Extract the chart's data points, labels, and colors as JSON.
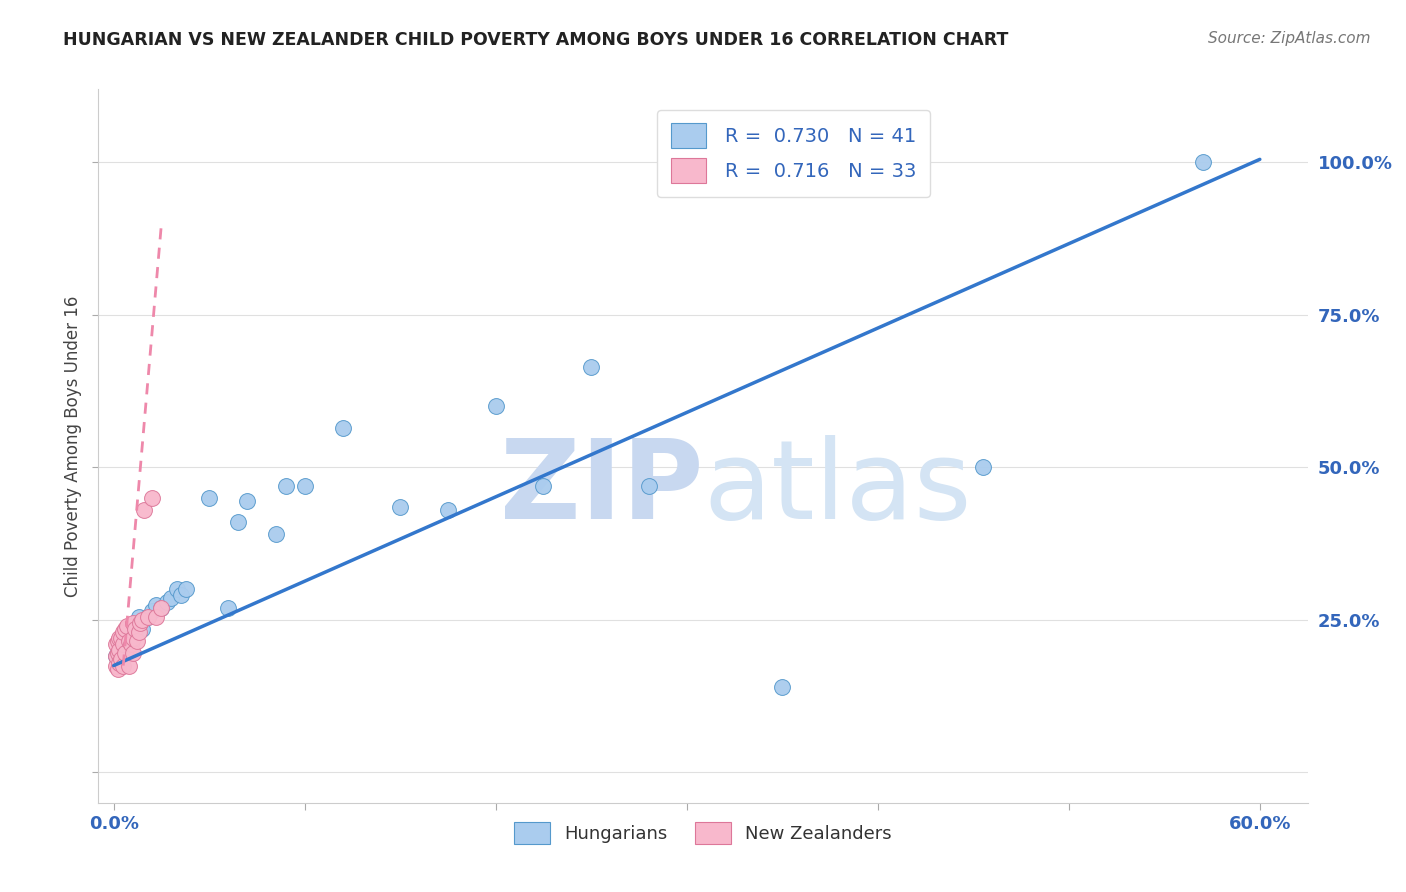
{
  "title": "HUNGARIAN VS NEW ZEALANDER CHILD POVERTY AMONG BOYS UNDER 16 CORRELATION CHART",
  "source": "Source: ZipAtlas.com",
  "ylabel": "Child Poverty Among Boys Under 16",
  "blue_r": 0.73,
  "blue_n": 41,
  "pink_r": 0.716,
  "pink_n": 33,
  "blue_color": "#aaccee",
  "blue_edge_color": "#5599cc",
  "pink_color": "#f8b8cc",
  "pink_edge_color": "#dd7799",
  "blue_line_color": "#3377cc",
  "pink_line_color": "#ee88aa",
  "watermark_color": "#c8d8f0",
  "grid_color": "#e0e0e0",
  "axis_label_color": "#3366bb",
  "title_color": "#222222",
  "source_color": "#777777",
  "blue_x": [
    0.001,
    0.002,
    0.003,
    0.003,
    0.004,
    0.005,
    0.005,
    0.006,
    0.007,
    0.008,
    0.009,
    0.01,
    0.012,
    0.013,
    0.015,
    0.018,
    0.02,
    0.022,
    0.025,
    0.028,
    0.03,
    0.033,
    0.035,
    0.038,
    0.05,
    0.06,
    0.065,
    0.07,
    0.085,
    0.09,
    0.1,
    0.12,
    0.15,
    0.175,
    0.2,
    0.225,
    0.25,
    0.28,
    0.35,
    0.455,
    0.57
  ],
  "blue_y": [
    0.19,
    0.195,
    0.185,
    0.21,
    0.195,
    0.205,
    0.185,
    0.2,
    0.22,
    0.215,
    0.2,
    0.225,
    0.245,
    0.255,
    0.235,
    0.255,
    0.265,
    0.275,
    0.27,
    0.28,
    0.285,
    0.3,
    0.29,
    0.3,
    0.45,
    0.27,
    0.41,
    0.445,
    0.39,
    0.47,
    0.47,
    0.565,
    0.435,
    0.43,
    0.6,
    0.47,
    0.665,
    0.47,
    0.14,
    0.5,
    1.0
  ],
  "pink_x": [
    0.001,
    0.001,
    0.001,
    0.002,
    0.002,
    0.002,
    0.003,
    0.003,
    0.003,
    0.004,
    0.004,
    0.005,
    0.005,
    0.005,
    0.006,
    0.006,
    0.007,
    0.008,
    0.008,
    0.009,
    0.01,
    0.01,
    0.01,
    0.011,
    0.012,
    0.013,
    0.014,
    0.015,
    0.016,
    0.018,
    0.02,
    0.022,
    0.025
  ],
  "pink_y": [
    0.175,
    0.19,
    0.21,
    0.17,
    0.195,
    0.215,
    0.18,
    0.2,
    0.22,
    0.185,
    0.22,
    0.175,
    0.21,
    0.23,
    0.195,
    0.235,
    0.24,
    0.175,
    0.215,
    0.21,
    0.195,
    0.22,
    0.245,
    0.235,
    0.215,
    0.23,
    0.245,
    0.25,
    0.43,
    0.255,
    0.45,
    0.255,
    0.27
  ],
  "blue_line_x": [
    0.0,
    0.6
  ],
  "blue_line_y": [
    0.175,
    1.005
  ],
  "pink_line_x": [
    0.005,
    0.025
  ],
  "pink_line_y": [
    0.175,
    0.9
  ],
  "xlim": [
    -0.008,
    0.625
  ],
  "ylim": [
    -0.05,
    1.12
  ],
  "xticks": [
    0.0,
    0.1,
    0.2,
    0.3,
    0.4,
    0.5,
    0.6
  ],
  "yticks": [
    0.0,
    0.25,
    0.5,
    0.75,
    1.0
  ]
}
